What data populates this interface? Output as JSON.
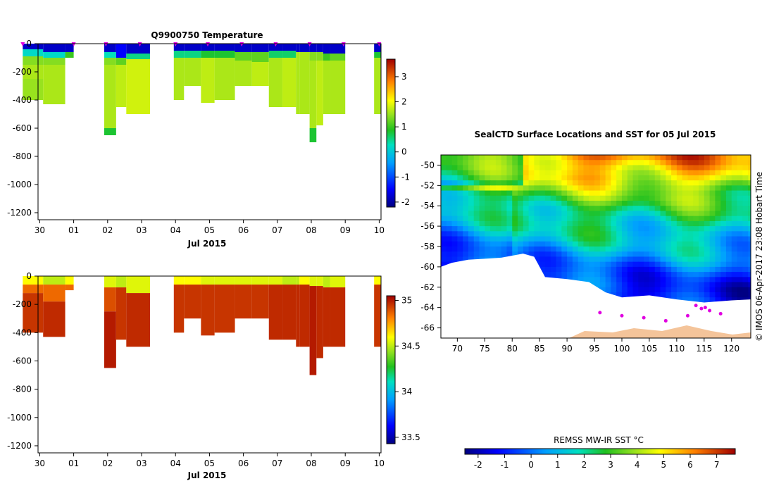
{
  "chart_data": [
    {
      "type": "heatmap",
      "title": "Q9900750  Temperature",
      "xlabel": "Jul 2015",
      "x_ticks": [
        "30",
        "01",
        "02",
        "03",
        "04",
        "05",
        "06",
        "07",
        "08",
        "09",
        "10"
      ],
      "y_ticks": [
        "0",
        "-200",
        "-400",
        "-600",
        "-800",
        "-1000",
        "-1200"
      ],
      "ylim": [
        -1250,
        0
      ],
      "colorbar": {
        "ticks": [
          "3",
          "2",
          "1",
          "0",
          "-1",
          "-2"
        ],
        "range": [
          -2.2,
          3.7
        ]
      },
      "profiles": [
        {
          "t0": -0.5,
          "t1": 0.1,
          "depth": 400,
          "levels": [
            [
              0,
              40,
              -1.8
            ],
            [
              40,
              90,
              0.2
            ],
            [
              90,
              150,
              1.4
            ],
            [
              150,
              250,
              1.6
            ],
            [
              250,
              400,
              1.5
            ]
          ]
        },
        {
          "t0": 0.1,
          "t1": 0.75,
          "depth": 430,
          "levels": [
            [
              0,
              60,
              -1.8
            ],
            [
              60,
              100,
              0.2
            ],
            [
              100,
              150,
              1.4
            ],
            [
              150,
              430,
              1.6
            ]
          ]
        },
        {
          "t0": 0.75,
          "t1": 1.0,
          "depth": 100,
          "levels": [
            [
              0,
              60,
              -1.8
            ],
            [
              60,
              100,
              1.0
            ]
          ]
        },
        {
          "t0": 1.9,
          "t1": 2.25,
          "depth": 650,
          "levels": [
            [
              0,
              60,
              -1.8
            ],
            [
              60,
              100,
              0.3
            ],
            [
              100,
              150,
              1.4
            ],
            [
              150,
              600,
              1.6
            ],
            [
              600,
              650,
              0.8
            ]
          ]
        },
        {
          "t0": 2.25,
          "t1": 2.55,
          "depth": 450,
          "levels": [
            [
              0,
              100,
              -1.5
            ],
            [
              100,
              150,
              1.2
            ],
            [
              150,
              450,
              1.7
            ]
          ]
        },
        {
          "t0": 2.55,
          "t1": 3.25,
          "depth": 500,
          "levels": [
            [
              0,
              70,
              -1.8
            ],
            [
              70,
              110,
              0.5
            ],
            [
              110,
              500,
              1.8
            ]
          ]
        },
        {
          "t0": 3.95,
          "t1": 4.25,
          "depth": 400,
          "levels": [
            [
              0,
              50,
              -1.8
            ],
            [
              50,
              100,
              0.5
            ],
            [
              100,
              400,
              1.6
            ]
          ]
        },
        {
          "t0": 4.25,
          "t1": 4.75,
          "depth": 300,
          "levels": [
            [
              0,
              50,
              -1.8
            ],
            [
              50,
              100,
              0.5
            ],
            [
              100,
              300,
              1.6
            ]
          ]
        },
        {
          "t0": 4.75,
          "t1": 5.15,
          "depth": 420,
          "levels": [
            [
              0,
              50,
              -1.8
            ],
            [
              50,
              100,
              0.8
            ],
            [
              100,
              420,
              1.7
            ]
          ]
        },
        {
          "t0": 5.15,
          "t1": 5.75,
          "depth": 400,
          "levels": [
            [
              0,
              50,
              -1.8
            ],
            [
              50,
              100,
              0.8
            ],
            [
              100,
              400,
              1.6
            ]
          ]
        },
        {
          "t0": 5.75,
          "t1": 6.25,
          "depth": 300,
          "levels": [
            [
              0,
              60,
              -1.8
            ],
            [
              60,
              120,
              1.2
            ],
            [
              120,
              300,
              1.6
            ]
          ]
        },
        {
          "t0": 6.25,
          "t1": 6.75,
          "depth": 300,
          "levels": [
            [
              0,
              60,
              -1.8
            ],
            [
              60,
              130,
              1.2
            ],
            [
              130,
              300,
              1.7
            ]
          ]
        },
        {
          "t0": 6.75,
          "t1": 7.15,
          "depth": 450,
          "levels": [
            [
              0,
              50,
              -1.8
            ],
            [
              50,
              100,
              0.6
            ],
            [
              100,
              450,
              1.6
            ]
          ]
        },
        {
          "t0": 7.15,
          "t1": 7.55,
          "depth": 450,
          "levels": [
            [
              0,
              50,
              -1.8
            ],
            [
              50,
              100,
              0.6
            ],
            [
              100,
              450,
              1.7
            ]
          ]
        },
        {
          "t0": 7.55,
          "t1": 7.65,
          "depth": 500,
          "levels": [
            [
              0,
              60,
              -1.8
            ],
            [
              60,
              500,
              1.6
            ]
          ]
        },
        {
          "t0": 7.65,
          "t1": 7.95,
          "depth": 500,
          "levels": [
            [
              0,
              60,
              -1.8
            ],
            [
              60,
              500,
              1.6
            ]
          ]
        },
        {
          "t0": 7.95,
          "t1": 8.15,
          "depth": 700,
          "levels": [
            [
              0,
              60,
              -1.8
            ],
            [
              60,
              120,
              1.4
            ],
            [
              120,
              600,
              1.6
            ],
            [
              600,
              700,
              0.8
            ]
          ]
        },
        {
          "t0": 8.15,
          "t1": 8.35,
          "depth": 580,
          "levels": [
            [
              0,
              60,
              -1.8
            ],
            [
              60,
              120,
              1.4
            ],
            [
              120,
              580,
              1.7
            ]
          ]
        },
        {
          "t0": 8.35,
          "t1": 8.55,
          "depth": 500,
          "levels": [
            [
              0,
              70,
              -1.8
            ],
            [
              70,
              120,
              1.0
            ],
            [
              120,
              500,
              1.6
            ]
          ]
        },
        {
          "t0": 8.55,
          "t1": 9.0,
          "depth": 500,
          "levels": [
            [
              0,
              70,
              -1.8
            ],
            [
              70,
              120,
              1.2
            ],
            [
              120,
              500,
              1.6
            ]
          ]
        },
        {
          "t0": 9.85,
          "t1": 10.05,
          "depth": 500,
          "levels": [
            [
              0,
              60,
              -1.8
            ],
            [
              60,
              100,
              0.8
            ],
            [
              100,
              500,
              1.6
            ]
          ]
        }
      ],
      "markers": [
        -0.5,
        1.0,
        1.95,
        2.95,
        4.0,
        4.95,
        5.95,
        6.95,
        7.95,
        8.95,
        10.0
      ]
    },
    {
      "type": "heatmap",
      "title": "",
      "xlabel": "Jul 2015",
      "x_ticks": [
        "30",
        "01",
        "02",
        "03",
        "04",
        "05",
        "06",
        "07",
        "08",
        "09",
        "10"
      ],
      "y_ticks": [
        "0",
        "-200",
        "-400",
        "-600",
        "-800",
        "-1000",
        "-1200"
      ],
      "ylim": [
        -1250,
        0
      ],
      "colorbar": {
        "ticks": [
          "35",
          "34.5",
          "34",
          "33.5"
        ],
        "range": [
          33.43,
          35.05
        ]
      },
      "profiles": [
        {
          "t0": -0.5,
          "t1": 0.1,
          "depth": 400,
          "levels": [
            [
              0,
              60,
              34.6
            ],
            [
              60,
              120,
              34.85
            ],
            [
              120,
              400,
              34.95
            ]
          ]
        },
        {
          "t0": 0.1,
          "t1": 0.75,
          "depth": 430,
          "levels": [
            [
              0,
              60,
              34.5
            ],
            [
              60,
              180,
              34.85
            ],
            [
              180,
              430,
              34.97
            ]
          ]
        },
        {
          "t0": 0.75,
          "t1": 1.0,
          "depth": 100,
          "levels": [
            [
              0,
              60,
              34.6
            ],
            [
              60,
              100,
              34.85
            ]
          ]
        },
        {
          "t0": 1.9,
          "t1": 2.25,
          "depth": 650,
          "levels": [
            [
              0,
              80,
              34.55
            ],
            [
              80,
              250,
              34.9
            ],
            [
              250,
              650,
              35.0
            ]
          ]
        },
        {
          "t0": 2.25,
          "t1": 2.55,
          "depth": 450,
          "levels": [
            [
              0,
              80,
              34.5
            ],
            [
              80,
              450,
              34.95
            ]
          ]
        },
        {
          "t0": 2.55,
          "t1": 3.25,
          "depth": 500,
          "levels": [
            [
              0,
              120,
              34.55
            ],
            [
              120,
              500,
              34.97
            ]
          ]
        },
        {
          "t0": 3.95,
          "t1": 4.25,
          "depth": 400,
          "levels": [
            [
              0,
              60,
              34.6
            ],
            [
              60,
              400,
              34.95
            ]
          ]
        },
        {
          "t0": 4.25,
          "t1": 4.75,
          "depth": 300,
          "levels": [
            [
              0,
              60,
              34.6
            ],
            [
              60,
              300,
              34.95
            ]
          ]
        },
        {
          "t0": 4.75,
          "t1": 5.15,
          "depth": 420,
          "levels": [
            [
              0,
              60,
              34.55
            ],
            [
              60,
              420,
              34.95
            ]
          ]
        },
        {
          "t0": 5.15,
          "t1": 5.75,
          "depth": 400,
          "levels": [
            [
              0,
              60,
              34.55
            ],
            [
              60,
              400,
              34.95
            ]
          ]
        },
        {
          "t0": 5.75,
          "t1": 6.25,
          "depth": 300,
          "levels": [
            [
              0,
              60,
              34.55
            ],
            [
              60,
              300,
              34.95
            ]
          ]
        },
        {
          "t0": 6.25,
          "t1": 6.75,
          "depth": 300,
          "levels": [
            [
              0,
              60,
              34.55
            ],
            [
              60,
              300,
              34.95
            ]
          ]
        },
        {
          "t0": 6.75,
          "t1": 7.15,
          "depth": 450,
          "levels": [
            [
              0,
              60,
              34.55
            ],
            [
              60,
              450,
              34.97
            ]
          ]
        },
        {
          "t0": 7.15,
          "t1": 7.55,
          "depth": 450,
          "levels": [
            [
              0,
              60,
              34.5
            ],
            [
              60,
              450,
              34.97
            ]
          ]
        },
        {
          "t0": 7.55,
          "t1": 7.65,
          "depth": 500,
          "levels": [
            [
              0,
              60,
              34.5
            ],
            [
              60,
              500,
              34.97
            ]
          ]
        },
        {
          "t0": 7.65,
          "t1": 7.95,
          "depth": 500,
          "levels": [
            [
              0,
              60,
              34.6
            ],
            [
              60,
              500,
              34.97
            ]
          ]
        },
        {
          "t0": 7.95,
          "t1": 8.15,
          "depth": 700,
          "levels": [
            [
              0,
              70,
              34.55
            ],
            [
              70,
              700,
              35.0
            ]
          ]
        },
        {
          "t0": 8.15,
          "t1": 8.35,
          "depth": 580,
          "levels": [
            [
              0,
              70,
              34.55
            ],
            [
              70,
              580,
              34.97
            ]
          ]
        },
        {
          "t0": 8.35,
          "t1": 8.55,
          "depth": 500,
          "levels": [
            [
              0,
              80,
              34.5
            ],
            [
              80,
              500,
              34.97
            ]
          ]
        },
        {
          "t0": 8.55,
          "t1": 9.0,
          "depth": 500,
          "levels": [
            [
              0,
              80,
              34.55
            ],
            [
              80,
              500,
              34.97
            ]
          ]
        },
        {
          "t0": 9.85,
          "t1": 10.05,
          "depth": 500,
          "levels": [
            [
              0,
              60,
              34.6
            ],
            [
              60,
              500,
              34.95
            ]
          ]
        }
      ]
    },
    {
      "type": "heatmap",
      "title": "SealCTD Surface Locations and SST for 05 Jul 2015",
      "xlim": [
        67,
        123.5
      ],
      "ylim": [
        -67,
        -49
      ],
      "x_ticks": [
        "70",
        "75",
        "80",
        "85",
        "90",
        "95",
        "100",
        "105",
        "110",
        "115",
        "120"
      ],
      "y_ticks": [
        "-50",
        "-52",
        "-54",
        "-56",
        "-58",
        "-60",
        "-62",
        "-64",
        "-66"
      ],
      "colorbar": {
        "label": "REMSS MW-IR SST °C",
        "ticks": [
          "-2",
          "-1",
          "0",
          "1",
          "2",
          "3",
          "4",
          "5",
          "6",
          "7"
        ],
        "range": [
          -2.5,
          7.7
        ]
      },
      "ice_edge": [
        [
          67,
          -60
        ],
        [
          69,
          -59.6
        ],
        [
          72,
          -59.3
        ],
        [
          75,
          -59.2
        ],
        [
          78,
          -59.1
        ],
        [
          80,
          -58.9
        ],
        [
          82,
          -58.7
        ],
        [
          84,
          -59.0
        ],
        [
          85,
          -60
        ],
        [
          86,
          -61
        ],
        [
          90,
          -61.2
        ],
        [
          94,
          -61.5
        ],
        [
          97,
          -62.5
        ],
        [
          100,
          -63.0
        ],
        [
          105,
          -62.8
        ],
        [
          110,
          -63.2
        ],
        [
          115,
          -63.5
        ],
        [
          120,
          -63.3
        ],
        [
          123.5,
          -63.2
        ]
      ],
      "sst_bands": [
        [
          -49,
          6.0
        ],
        [
          -51,
          5.0
        ],
        [
          -52.5,
          3.5
        ],
        [
          -54,
          2.6
        ],
        [
          -56,
          1.8
        ],
        [
          -58,
          0.9
        ],
        [
          -59.5,
          0.2
        ],
        [
          -61,
          -0.5
        ],
        [
          -62,
          -1.0
        ],
        [
          -64,
          -1.5
        ]
      ]
    }
  ],
  "footer": {
    "credit": "© IMOS 06-Apr-2017 23:08 Hobart Time"
  }
}
